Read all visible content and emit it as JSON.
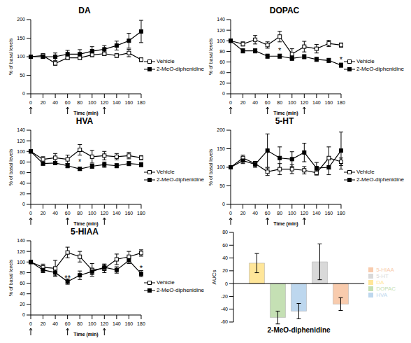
{
  "chart_data": [
    {
      "type": "line",
      "title": "DA",
      "x": [
        0,
        20,
        40,
        60,
        80,
        100,
        120,
        140,
        160,
        180
      ],
      "xlim": [
        0,
        180
      ],
      "xticks": [
        0,
        20,
        40,
        60,
        80,
        100,
        120,
        140,
        160,
        180
      ],
      "ylim": [
        0,
        200
      ],
      "yticks": [
        0,
        50,
        100,
        150,
        200
      ],
      "x_label": "Time (min)",
      "y_label": "% of basal levels",
      "legend": "right",
      "arrows": [
        0,
        60,
        120
      ],
      "series": [
        {
          "name": "Vehicle",
          "color": "#000000",
          "marker": "open_square",
          "values": [
            100,
            103,
            82,
            97,
            97,
            105,
            108,
            103,
            110,
            92
          ],
          "errors": [
            0,
            5,
            5,
            5,
            5,
            5,
            5,
            5,
            10,
            5
          ]
        },
        {
          "name": "2-MeO-diphenidine",
          "color": "#000000",
          "marker": "square",
          "values": [
            100,
            100,
            100,
            107,
            107,
            115,
            120,
            130,
            143,
            168
          ],
          "errors": [
            0,
            5,
            10,
            10,
            12,
            12,
            10,
            12,
            20,
            30
          ]
        }
      ],
      "annotations": []
    },
    {
      "type": "line",
      "title": "DOPAC",
      "x": [
        0,
        20,
        40,
        60,
        80,
        100,
        120,
        140,
        160,
        180
      ],
      "xlim": [
        0,
        180
      ],
      "xticks": [
        0,
        20,
        40,
        60,
        80,
        100,
        120,
        140,
        160,
        180
      ],
      "ylim": [
        0,
        140
      ],
      "yticks": [
        0,
        20,
        40,
        60,
        80,
        100,
        120,
        140
      ],
      "x_label": "Time (min)",
      "y_label": "% of basal levels",
      "legend": "right",
      "arrows": [
        0,
        60,
        120
      ],
      "series": [
        {
          "name": "Vehicle",
          "color": "#000000",
          "marker": "open_square",
          "values": [
            100,
            94,
            102,
            92,
            108,
            75,
            89,
            85,
            95,
            92
          ],
          "errors": [
            0,
            4,
            8,
            6,
            10,
            10,
            10,
            8,
            6,
            4
          ]
        },
        {
          "name": "2-MeO-diphenidine",
          "color": "#000000",
          "marker": "square",
          "values": [
            100,
            81,
            81,
            71,
            71,
            67,
            70,
            65,
            63,
            54
          ],
          "errors": [
            0,
            4,
            4,
            4,
            4,
            4,
            4,
            4,
            4,
            4
          ]
        }
      ],
      "annotations": [
        {
          "x": 80,
          "y": 82,
          "text": "*"
        },
        {
          "x": 180,
          "y": 64,
          "text": "*"
        }
      ]
    },
    {
      "type": "line",
      "title": "HVA",
      "x": [
        0,
        20,
        40,
        60,
        80,
        100,
        120,
        140,
        160,
        180
      ],
      "xlim": [
        0,
        180
      ],
      "xticks": [
        0,
        20,
        40,
        60,
        80,
        100,
        120,
        140,
        160,
        180
      ],
      "ylim": [
        0,
        140
      ],
      "yticks": [
        0,
        20,
        40,
        60,
        80,
        100,
        120,
        140
      ],
      "x_label": "Time (min)",
      "y_label": "% of basal levels",
      "legend": "right",
      "arrows": [
        0,
        60,
        120
      ],
      "series": [
        {
          "name": "Vehicle",
          "color": "#000000",
          "marker": "open_square",
          "values": [
            100,
            85,
            88,
            85,
            103,
            90,
            92,
            90,
            92,
            88
          ],
          "errors": [
            0,
            5,
            8,
            8,
            10,
            12,
            8,
            6,
            6,
            4
          ]
        },
        {
          "name": "2-MeO-diphenidine",
          "color": "#000000",
          "marker": "square",
          "values": [
            100,
            77,
            78,
            73,
            67,
            72,
            75,
            73,
            77,
            75
          ],
          "errors": [
            0,
            3,
            3,
            4,
            3,
            4,
            5,
            4,
            4,
            4
          ]
        }
      ],
      "annotations": [
        {
          "x": 80,
          "y": 80,
          "text": "*"
        }
      ]
    },
    {
      "type": "line",
      "title": "5-HT",
      "x": [
        0,
        20,
        40,
        60,
        80,
        100,
        120,
        140,
        160,
        180
      ],
      "xlim": [
        0,
        180
      ],
      "xticks": [
        0,
        20,
        40,
        60,
        80,
        100,
        120,
        140,
        160,
        180
      ],
      "ylim": [
        0,
        200
      ],
      "yticks": [
        0,
        50,
        100,
        150,
        200
      ],
      "x_label": "Time (min)",
      "y_label": "% of basal levels",
      "legend": "right",
      "arrows": [
        0,
        60,
        120
      ],
      "series": [
        {
          "name": "Vehicle",
          "color": "#000000",
          "marker": "open_square",
          "values": [
            100,
            125,
            110,
            88,
            95,
            95,
            92,
            85,
            125,
            115
          ],
          "errors": [
            0,
            8,
            6,
            10,
            15,
            12,
            10,
            6,
            30,
            10
          ]
        },
        {
          "name": "2-MeO-diphenidine",
          "color": "#000000",
          "marker": "square",
          "values": [
            100,
            118,
            108,
            145,
            125,
            122,
            140,
            98,
            100,
            145
          ],
          "errors": [
            0,
            8,
            8,
            45,
            30,
            20,
            25,
            15,
            20,
            50
          ]
        }
      ],
      "annotations": []
    },
    {
      "type": "line",
      "title": "5-HIAA",
      "x": [
        0,
        20,
        40,
        60,
        80,
        100,
        120,
        140,
        160,
        180
      ],
      "xlim": [
        0,
        180
      ],
      "xticks": [
        0,
        20,
        40,
        60,
        80,
        100,
        120,
        140,
        160,
        180
      ],
      "ylim": [
        0,
        140
      ],
      "yticks": [
        0,
        20,
        40,
        60,
        80,
        100,
        120,
        140
      ],
      "x_label": "Time (min)",
      "y_label": "% of basal levels",
      "legend": "right",
      "arrows": [
        0,
        60,
        120
      ],
      "series": [
        {
          "name": "Vehicle",
          "color": "#000000",
          "marker": "open_square",
          "values": [
            100,
            90,
            88,
            118,
            110,
            85,
            88,
            105,
            110,
            117
          ],
          "errors": [
            0,
            6,
            15,
            10,
            10,
            12,
            8,
            10,
            10,
            6
          ]
        },
        {
          "name": "2-MeO-diphenidine",
          "color": "#000000",
          "marker": "square",
          "values": [
            100,
            85,
            80,
            63,
            75,
            82,
            90,
            85,
            103,
            78
          ],
          "errors": [
            0,
            5,
            6,
            5,
            8,
            6,
            6,
            6,
            6,
            6
          ]
        }
      ],
      "annotations": [
        {
          "x": 60,
          "y": 70,
          "text": "**"
        },
        {
          "x": 180,
          "y": 88,
          "text": "*"
        }
      ]
    },
    {
      "type": "bar",
      "categories": [
        "2-MeO-diphenidine"
      ],
      "y_label": "AUCs",
      "ylim": [
        -60,
        80
      ],
      "yticks": [
        -60,
        -40,
        -20,
        0,
        20,
        40,
        60,
        80
      ],
      "legend": "right",
      "series": [
        {
          "name": "DA",
          "color": "#ffe699",
          "values": [
            32
          ],
          "errors": [
            15
          ]
        },
        {
          "name": "DOPAC",
          "color": "#c5e0b4",
          "values": [
            -53
          ],
          "errors": [
            10
          ]
        },
        {
          "name": "HVA",
          "color": "#bdd7ee",
          "values": [
            -43
          ],
          "errors": [
            12
          ]
        },
        {
          "name": "5-HT",
          "color": "#d9d9d9",
          "values": [
            34
          ],
          "errors": [
            28
          ]
        },
        {
          "name": "5-HIAA",
          "color": "#f8cbad",
          "values": [
            -32
          ],
          "errors": [
            10
          ]
        }
      ]
    }
  ]
}
